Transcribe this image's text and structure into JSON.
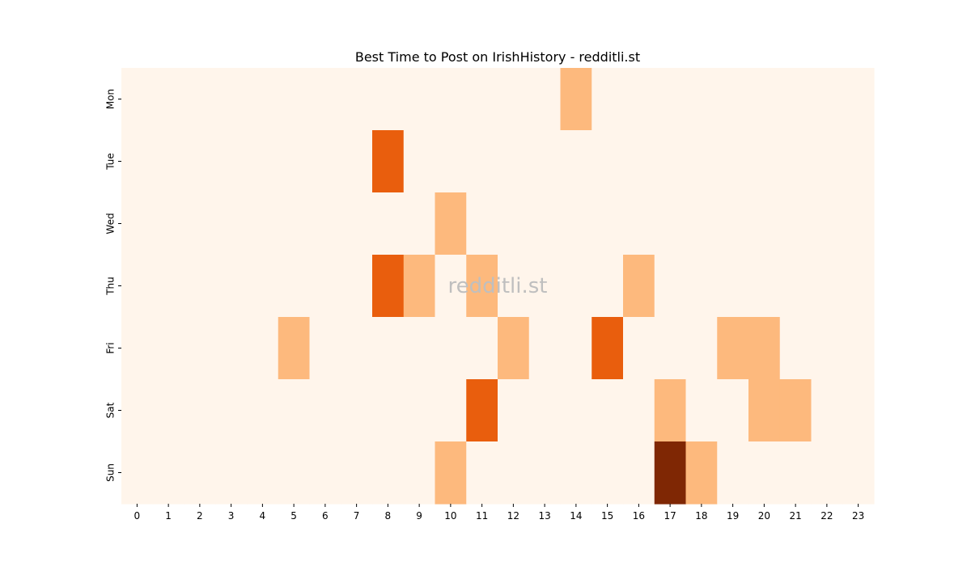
{
  "chart_data": {
    "type": "heatmap",
    "title": "Best Time to Post on IrishHistory - redditli.st",
    "watermark": "redditli.st",
    "x_categories": [
      "0",
      "1",
      "2",
      "3",
      "4",
      "5",
      "6",
      "7",
      "8",
      "9",
      "10",
      "11",
      "12",
      "13",
      "14",
      "15",
      "16",
      "17",
      "18",
      "19",
      "20",
      "21",
      "22",
      "23"
    ],
    "y_categories": [
      "Mon",
      "Tue",
      "Wed",
      "Thu",
      "Fri",
      "Sat",
      "Sun"
    ],
    "values": [
      [
        0,
        0,
        0,
        0,
        0,
        0,
        0,
        0,
        0,
        0,
        0,
        0,
        0,
        0,
        1,
        0,
        0,
        0,
        0,
        0,
        0,
        0,
        0,
        0
      ],
      [
        0,
        0,
        0,
        0,
        0,
        0,
        0,
        0,
        2,
        0,
        0,
        0,
        0,
        0,
        0,
        0,
        0,
        0,
        0,
        0,
        0,
        0,
        0,
        0
      ],
      [
        0,
        0,
        0,
        0,
        0,
        0,
        0,
        0,
        0,
        0,
        1,
        0,
        0,
        0,
        0,
        0,
        0,
        0,
        0,
        0,
        0,
        0,
        0,
        0
      ],
      [
        0,
        0,
        0,
        0,
        0,
        0,
        0,
        0,
        2,
        1,
        0,
        1,
        0,
        0,
        0,
        0,
        1,
        0,
        0,
        0,
        0,
        0,
        0,
        0
      ],
      [
        0,
        0,
        0,
        0,
        0,
        1,
        0,
        0,
        0,
        0,
        0,
        0,
        1,
        0,
        0,
        2,
        0,
        0,
        0,
        1,
        1,
        0,
        0,
        0
      ],
      [
        0,
        0,
        0,
        0,
        0,
        0,
        0,
        0,
        0,
        0,
        0,
        2,
        0,
        0,
        0,
        0,
        0,
        1,
        0,
        0,
        1,
        1,
        0,
        0
      ],
      [
        0,
        0,
        0,
        0,
        0,
        0,
        0,
        0,
        0,
        0,
        1,
        0,
        0,
        0,
        0,
        0,
        0,
        3,
        1,
        0,
        0,
        0,
        0,
        0
      ]
    ],
    "colors": [
      "#fff5eb",
      "#fdb97d",
      "#e95e0d",
      "#7f2704"
    ],
    "grid": false,
    "legend": "none"
  }
}
